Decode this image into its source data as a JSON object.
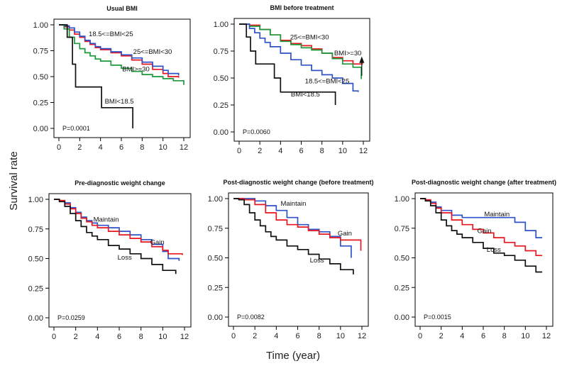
{
  "figure": {
    "ylabel": "Survival rate",
    "xlabel": "Time (year)"
  },
  "chart_data": [
    {
      "type": "line",
      "title": "Usual BMI",
      "pvalue": "P=0.0001",
      "xlim": [
        0,
        12
      ],
      "ylim": [
        0,
        1
      ],
      "xticks": [
        "0",
        "2",
        "4",
        "6",
        "8",
        "10",
        "12"
      ],
      "yticks": [
        "0.00",
        "0.25",
        "0.50",
        "0.75",
        "1.00"
      ],
      "series": [
        {
          "name": "18.5<=BMI<25",
          "color": "#e8171f",
          "label_at": [
            5,
            0.89
          ],
          "x": [
            0,
            0.5,
            1,
            1.5,
            2,
            2.5,
            3,
            3.5,
            4,
            5,
            6,
            7,
            8,
            9,
            10,
            10.5,
            11.5
          ],
          "y": [
            1,
            0.98,
            0.95,
            0.91,
            0.88,
            0.84,
            0.81,
            0.78,
            0.76,
            0.73,
            0.7,
            0.66,
            0.62,
            0.57,
            0.53,
            0.5,
            0.49
          ]
        },
        {
          "name": "25<=BMI<30",
          "color": "#2f52c8",
          "label_at": [
            9,
            0.72
          ],
          "x": [
            0,
            0.5,
            1,
            1.5,
            2,
            2.5,
            3,
            3.5,
            4,
            5,
            6,
            7,
            8,
            9,
            10,
            10.5,
            11.5
          ],
          "y": [
            1,
            0.99,
            0.97,
            0.93,
            0.89,
            0.85,
            0.82,
            0.79,
            0.77,
            0.74,
            0.71,
            0.68,
            0.64,
            0.6,
            0.56,
            0.53,
            0.51
          ]
        },
        {
          "name": "BMI>=30",
          "color": "#1a9a3a",
          "label_at": [
            7.4,
            0.55
          ],
          "x": [
            0,
            0.5,
            1,
            1.5,
            2,
            2.5,
            3,
            3.5,
            4,
            5,
            6,
            7,
            8,
            9,
            10,
            11,
            12
          ],
          "y": [
            1,
            0.96,
            0.88,
            0.82,
            0.77,
            0.73,
            0.7,
            0.67,
            0.65,
            0.61,
            0.58,
            0.55,
            0.52,
            0.5,
            0.48,
            0.46,
            0.42
          ]
        },
        {
          "name": "BMI<18.5",
          "color": "#111111",
          "label_at": [
            5.8,
            0.24
          ],
          "x": [
            0,
            0.8,
            1.3,
            1.6,
            2.4,
            4.1,
            7.1,
            7.1
          ],
          "y": [
            1,
            0.88,
            0.62,
            0.4,
            0.4,
            0.2,
            0.2,
            0
          ]
        }
      ]
    },
    {
      "type": "line",
      "title": "BMI before treatment",
      "pvalue": "P=0.0060",
      "xlim": [
        0,
        12
      ],
      "ylim": [
        0,
        1
      ],
      "xticks": [
        "0",
        "2",
        "4",
        "6",
        "8",
        "10",
        "12"
      ],
      "yticks": [
        "0.00",
        "0.25",
        "0.50",
        "0.75",
        "1.00"
      ],
      "series": [
        {
          "name": "25<=BMI<30",
          "color": "#e8171f",
          "label_at": [
            6.8,
            0.86
          ],
          "x": [
            0,
            1,
            2,
            3,
            4,
            5,
            6,
            7,
            8,
            9,
            10,
            11,
            11.9
          ],
          "y": [
            1,
            0.99,
            0.95,
            0.9,
            0.85,
            0.82,
            0.8,
            0.77,
            0.73,
            0.69,
            0.66,
            0.63,
            0.64
          ]
        },
        {
          "name": "BMI>=30",
          "color": "#1a9a3a",
          "label_at": [
            10.5,
            0.71
          ],
          "x": [
            0,
            1,
            2,
            3,
            4,
            5,
            6,
            7,
            8,
            9,
            10,
            11,
            11.5,
            11.8
          ],
          "y": [
            1,
            0.98,
            0.95,
            0.9,
            0.84,
            0.81,
            0.78,
            0.76,
            0.73,
            0.68,
            0.63,
            0.6,
            0.6,
            0.49
          ]
        },
        {
          "name": "18.5<=BMI<25",
          "color": "#2f52c8",
          "label_at": [
            8.5,
            0.45
          ],
          "x": [
            0,
            1,
            1.5,
            2,
            2.5,
            3,
            4,
            5,
            6,
            7,
            8,
            9,
            10,
            11,
            11.5
          ],
          "y": [
            1,
            0.96,
            0.92,
            0.87,
            0.83,
            0.79,
            0.73,
            0.67,
            0.62,
            0.57,
            0.53,
            0.5,
            0.45,
            0.38,
            0.37
          ]
        },
        {
          "name": "BMI<18.5",
          "color": "#111111",
          "label_at": [
            6.4,
            0.33
          ],
          "x": [
            0,
            0.7,
            1.1,
            1.6,
            2.3,
            3.4,
            4,
            8.4,
            9.3
          ],
          "y": [
            1,
            0.88,
            0.75,
            0.63,
            0.63,
            0.5,
            0.37,
            0.37,
            0.25
          ]
        }
      ]
    },
    {
      "type": "line",
      "title": "Pre-diagnostic weight change",
      "pvalue": "P=0.0259",
      "xlim": [
        0,
        12
      ],
      "ylim": [
        0,
        1
      ],
      "xticks": [
        "0",
        "2",
        "4",
        "6",
        "8",
        "10",
        "12"
      ],
      "yticks": [
        "0.00",
        "0.25",
        "0.50",
        "0.75",
        "1.00"
      ],
      "series": [
        {
          "name": "Maintain",
          "color": "#2f52c8",
          "label_at": [
            4.8,
            0.81
          ],
          "x": [
            0,
            0.5,
            1,
            1.5,
            2,
            2.5,
            3,
            3.5,
            4,
            5,
            6,
            7,
            8,
            9,
            10,
            10.5,
            11.5
          ],
          "y": [
            1,
            0.99,
            0.97,
            0.93,
            0.89,
            0.85,
            0.82,
            0.8,
            0.78,
            0.76,
            0.73,
            0.7,
            0.66,
            0.62,
            0.56,
            0.5,
            0.48
          ]
        },
        {
          "name": "Gain",
          "color": "#e8171f",
          "label_at": [
            9.5,
            0.62
          ],
          "x": [
            0,
            0.5,
            1,
            1.5,
            2,
            2.5,
            3,
            3.5,
            4,
            5,
            6,
            7,
            8,
            9,
            10,
            10.5,
            11.8
          ],
          "y": [
            1,
            0.99,
            0.96,
            0.92,
            0.88,
            0.84,
            0.81,
            0.78,
            0.76,
            0.73,
            0.7,
            0.67,
            0.64,
            0.6,
            0.57,
            0.54,
            0.53
          ]
        },
        {
          "name": "Loss",
          "color": "#111111",
          "label_at": [
            6.5,
            0.49
          ],
          "x": [
            0,
            0.5,
            1,
            1.5,
            2,
            2.5,
            3,
            3.5,
            4,
            5,
            6,
            7,
            8,
            9,
            10,
            11.2
          ],
          "y": [
            1,
            0.98,
            0.94,
            0.88,
            0.82,
            0.77,
            0.72,
            0.69,
            0.66,
            0.61,
            0.58,
            0.54,
            0.5,
            0.45,
            0.4,
            0.37
          ]
        }
      ]
    },
    {
      "type": "line",
      "title": "Post-diagnostic weight change (before treatment)",
      "pvalue": "P=0.0082",
      "xlim": [
        0,
        12
      ],
      "ylim": [
        0,
        1
      ],
      "xticks": [
        "0",
        "2",
        "4",
        "6",
        "8",
        "10",
        "12"
      ],
      "yticks": [
        "0.00",
        "0.25",
        "0.50",
        "0.75",
        "1.00"
      ],
      "series": [
        {
          "name": "Maintain",
          "color": "#2f52c8",
          "label_at": [
            5.6,
            0.94
          ],
          "x": [
            0,
            1,
            2,
            3,
            4,
            5,
            6,
            7,
            8,
            9,
            10,
            11
          ],
          "y": [
            1,
            1,
            0.98,
            0.94,
            0.9,
            0.84,
            0.78,
            0.74,
            0.72,
            0.68,
            0.6,
            0.5
          ]
        },
        {
          "name": "Gain",
          "color": "#e8171f",
          "label_at": [
            10.4,
            0.69
          ],
          "x": [
            0,
            1,
            2,
            3,
            4,
            5,
            6,
            7,
            8,
            9,
            10,
            11,
            11.9
          ],
          "y": [
            1,
            0.99,
            0.95,
            0.88,
            0.82,
            0.78,
            0.76,
            0.73,
            0.7,
            0.67,
            0.65,
            0.65,
            0.56
          ]
        },
        {
          "name": "Loss",
          "color": "#111111",
          "label_at": [
            7.8,
            0.46
          ],
          "x": [
            0,
            0.5,
            1,
            1.5,
            2,
            2.5,
            3,
            3.5,
            4,
            5,
            6,
            7,
            8,
            9,
            10,
            11.2
          ],
          "y": [
            1,
            0.99,
            0.95,
            0.88,
            0.82,
            0.77,
            0.72,
            0.68,
            0.65,
            0.6,
            0.57,
            0.53,
            0.49,
            0.45,
            0.4,
            0.36
          ]
        }
      ]
    },
    {
      "type": "line",
      "title": "Post-diagnostic weight change (after treatment)",
      "pvalue": "P=0.0015",
      "xlim": [
        0,
        12
      ],
      "ylim": [
        0,
        1
      ],
      "xticks": [
        "0",
        "2",
        "4",
        "6",
        "8",
        "10",
        "12"
      ],
      "yticks": [
        "0.00",
        "0.25",
        "0.50",
        "0.75",
        "1.00"
      ],
      "series": [
        {
          "name": "Maintain",
          "color": "#2f52c8",
          "label_at": [
            7.3,
            0.85
          ],
          "x": [
            0,
            0.5,
            1,
            1.5,
            2,
            3,
            4,
            5,
            6,
            7,
            8,
            9,
            10,
            11,
            11.6
          ],
          "y": [
            1,
            0.99,
            0.97,
            0.93,
            0.9,
            0.86,
            0.84,
            0.84,
            0.84,
            0.84,
            0.84,
            0.8,
            0.73,
            0.67,
            0.67
          ]
        },
        {
          "name": "Gain",
          "color": "#e8171f",
          "label_at": [
            6.1,
            0.71
          ],
          "x": [
            0,
            0.5,
            1,
            1.5,
            2,
            3,
            4,
            5,
            6,
            7,
            8,
            9,
            10,
            11,
            11.6
          ],
          "y": [
            1,
            0.99,
            0.96,
            0.92,
            0.88,
            0.82,
            0.78,
            0.74,
            0.71,
            0.67,
            0.63,
            0.6,
            0.56,
            0.52,
            0.52
          ]
        },
        {
          "name": "Loss",
          "color": "#111111",
          "label_at": [
            7,
            0.55
          ],
          "x": [
            0,
            0.5,
            1,
            1.5,
            2,
            2.5,
            3,
            3.5,
            4,
            5,
            6,
            7,
            8,
            9,
            10,
            11,
            11.6
          ],
          "y": [
            1,
            0.98,
            0.94,
            0.88,
            0.82,
            0.77,
            0.73,
            0.7,
            0.67,
            0.63,
            0.58,
            0.54,
            0.52,
            0.48,
            0.43,
            0.38,
            0.38
          ]
        }
      ]
    }
  ]
}
